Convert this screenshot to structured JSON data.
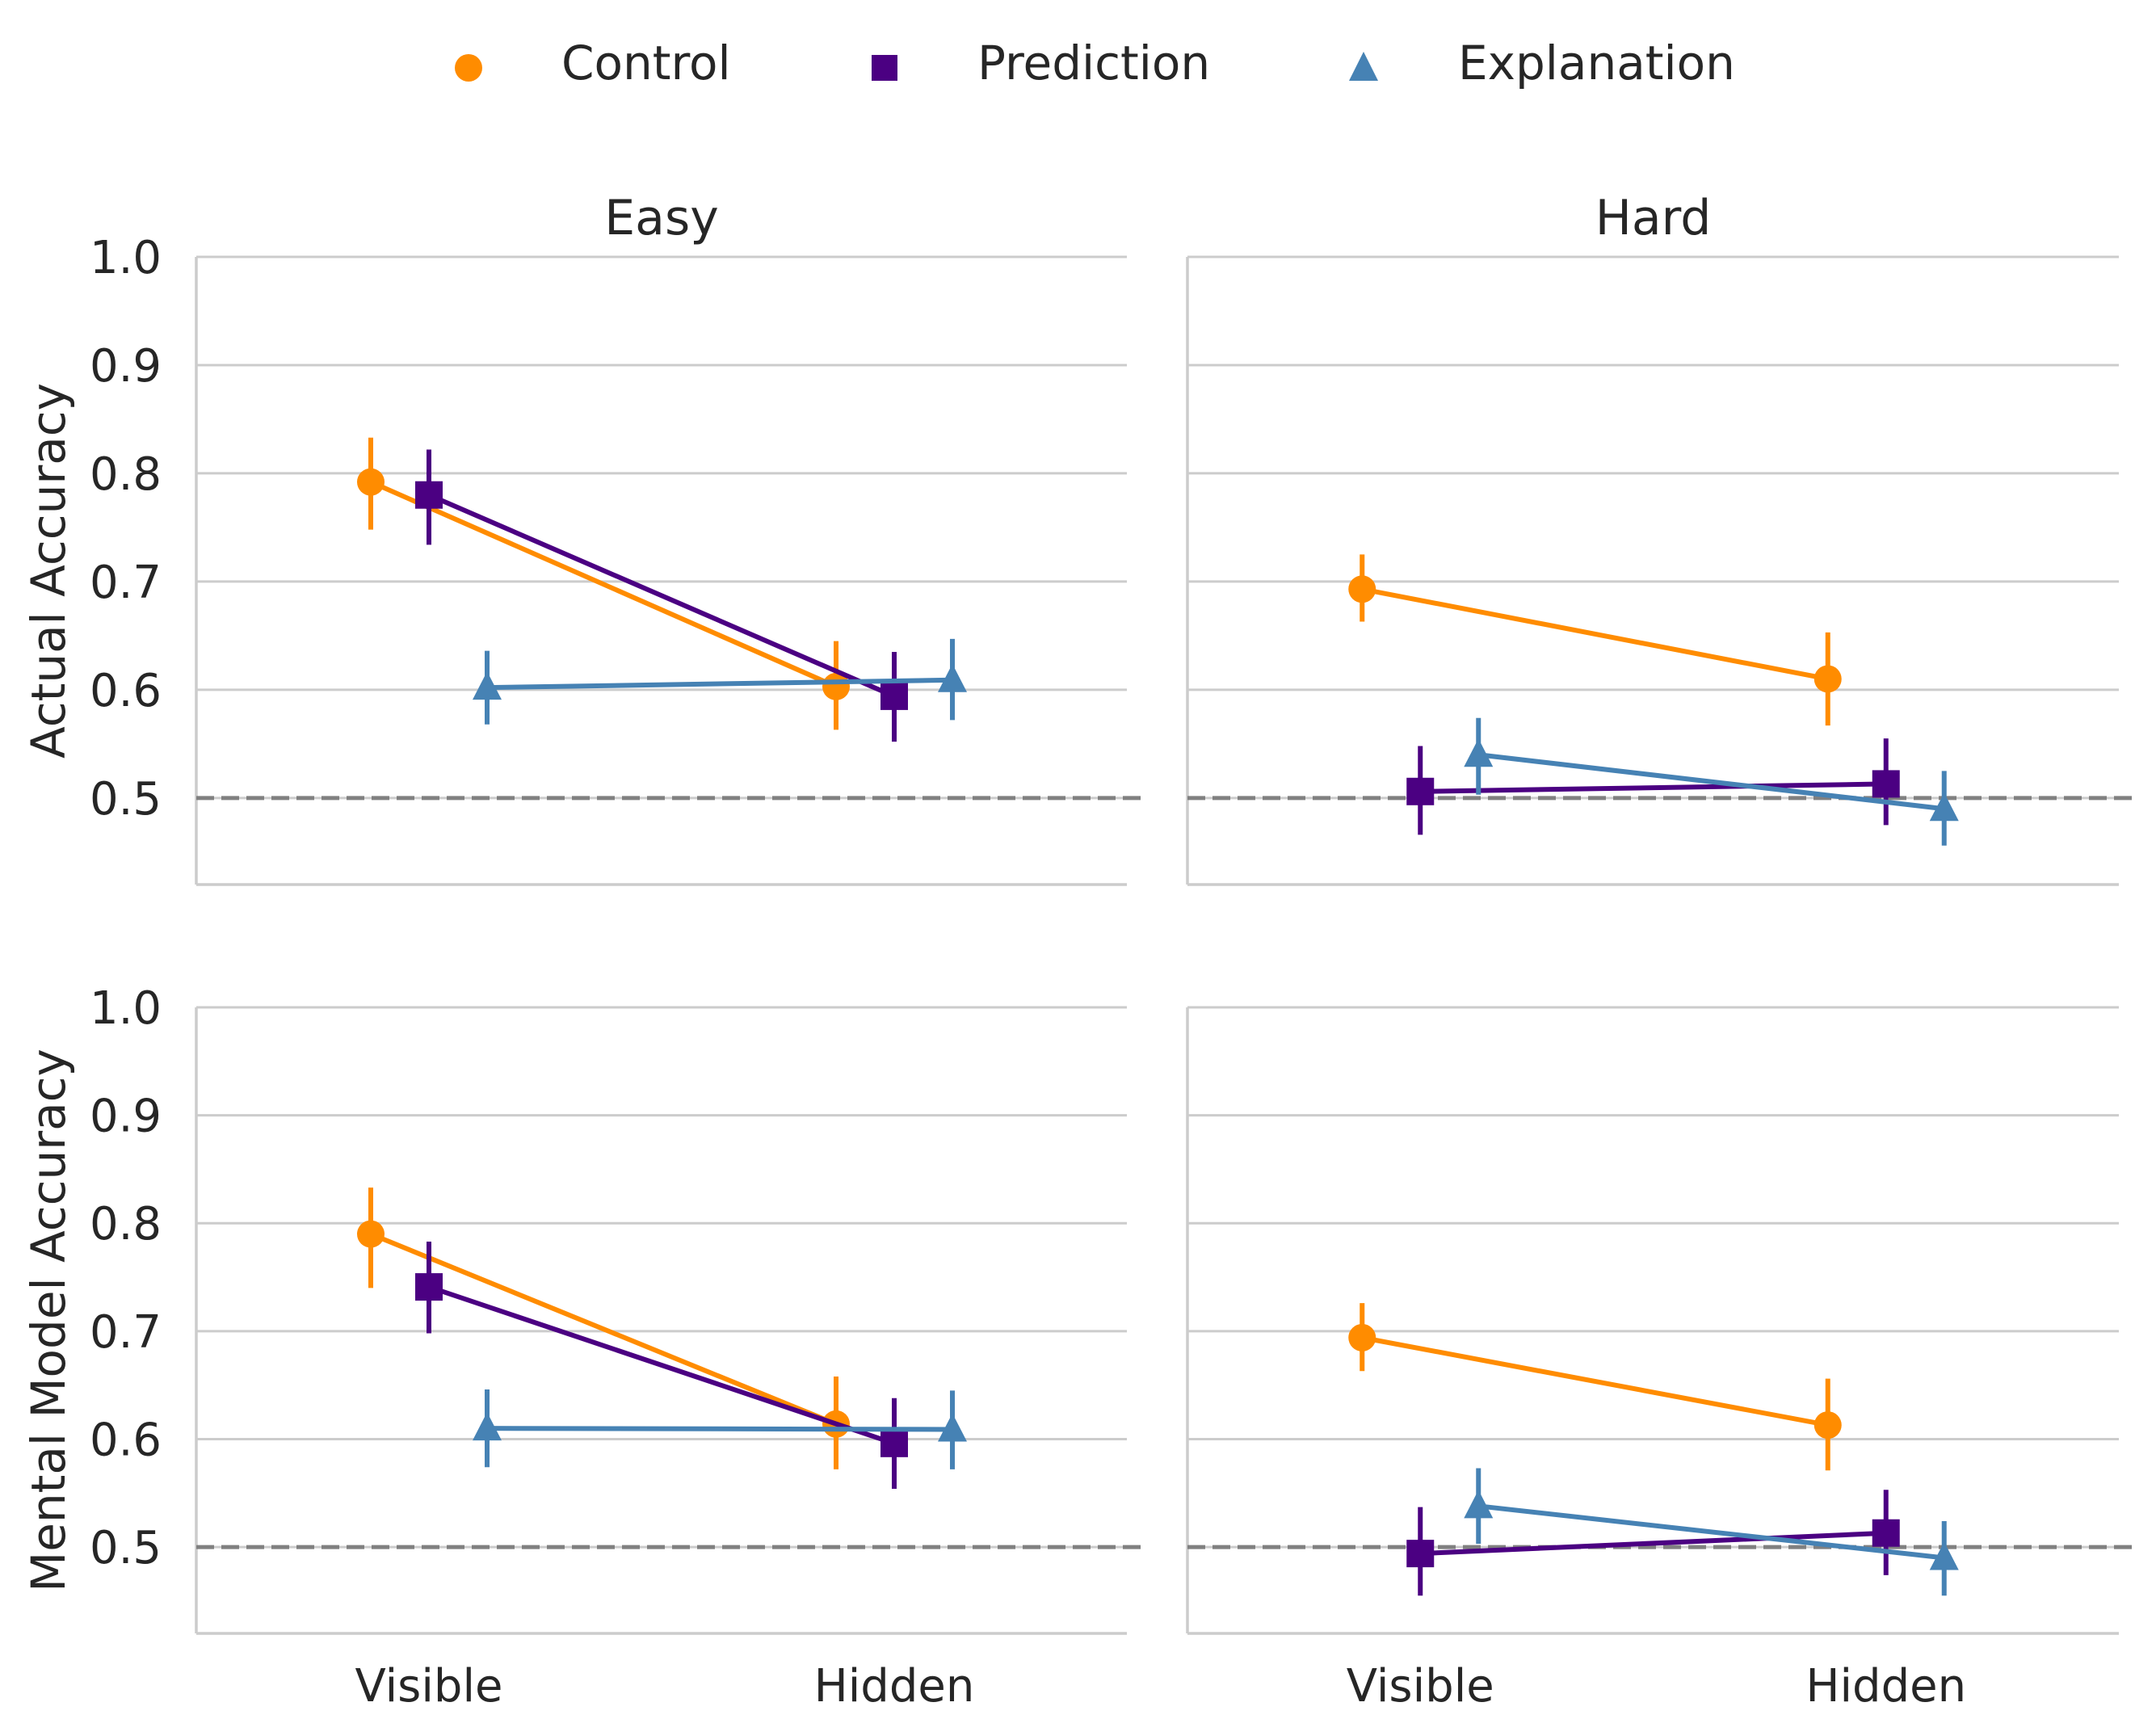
{
  "legend": {
    "placement": "top-center",
    "items": [
      {
        "label": "Control",
        "marker": "circle",
        "color": "#FF8C00"
      },
      {
        "label": "Prediction",
        "marker": "square",
        "color": "#4B0082"
      },
      {
        "label": "Explanation",
        "marker": "triangle",
        "color": "#4682B4"
      }
    ]
  },
  "chart_data": [
    {
      "type": "line",
      "title": "Easy",
      "ylabel": "Actual Accuracy",
      "xlabel": "",
      "categories": [
        "Visible",
        "Hidden"
      ],
      "ylim": [
        0.42,
        1.0
      ],
      "yticks": [
        "0.5",
        "0.6",
        "0.7",
        "0.8",
        "0.9",
        "1.0"
      ],
      "grid": true,
      "reference_line": 0.5,
      "series": [
        {
          "name": "Control",
          "values": [
            0.792,
            0.603
          ],
          "ci_low": [
            0.748,
            0.563
          ],
          "ci_high": [
            0.833,
            0.645
          ]
        },
        {
          "name": "Prediction",
          "values": [
            0.78,
            0.594
          ],
          "ci_low": [
            0.734,
            0.552
          ],
          "ci_high": [
            0.822,
            0.635
          ]
        },
        {
          "name": "Explanation",
          "values": [
            0.602,
            0.609
          ],
          "ci_low": [
            0.568,
            0.572
          ],
          "ci_high": [
            0.636,
            0.647
          ]
        }
      ]
    },
    {
      "type": "line",
      "title": "Hard",
      "ylabel": "",
      "xlabel": "",
      "categories": [
        "Visible",
        "Hidden"
      ],
      "ylim": [
        0.42,
        1.0
      ],
      "grid": true,
      "reference_line": 0.5,
      "series": [
        {
          "name": "Control",
          "values": [
            0.693,
            0.61
          ],
          "ci_low": [
            0.663,
            0.567
          ],
          "ci_high": [
            0.725,
            0.653
          ]
        },
        {
          "name": "Prediction",
          "values": [
            0.506,
            0.513
          ],
          "ci_low": [
            0.466,
            0.475
          ],
          "ci_high": [
            0.548,
            0.555
          ]
        },
        {
          "name": "Explanation",
          "values": [
            0.54,
            0.49
          ],
          "ci_low": [
            0.503,
            0.456
          ],
          "ci_high": [
            0.574,
            0.525
          ]
        }
      ]
    },
    {
      "type": "line",
      "title": "",
      "ylabel": "Mental Model Accuracy",
      "xlabel": "",
      "categories": [
        "Visible",
        "Hidden"
      ],
      "ylim": [
        0.42,
        1.0
      ],
      "yticks": [
        "0.5",
        "0.6",
        "0.7",
        "0.8",
        "0.9",
        "1.0"
      ],
      "grid": true,
      "reference_line": 0.5,
      "series": [
        {
          "name": "Control",
          "values": [
            0.79,
            0.614
          ],
          "ci_low": [
            0.74,
            0.572
          ],
          "ci_high": [
            0.833,
            0.658
          ]
        },
        {
          "name": "Prediction",
          "values": [
            0.741,
            0.596
          ],
          "ci_low": [
            0.698,
            0.554
          ],
          "ci_high": [
            0.783,
            0.638
          ]
        },
        {
          "name": "Explanation",
          "values": [
            0.61,
            0.609
          ],
          "ci_low": [
            0.574,
            0.572
          ],
          "ci_high": [
            0.646,
            0.645
          ]
        }
      ]
    },
    {
      "type": "line",
      "title": "",
      "ylabel": "",
      "xlabel": "",
      "categories": [
        "Visible",
        "Hidden"
      ],
      "ylim": [
        0.42,
        1.0
      ],
      "grid": true,
      "reference_line": 0.5,
      "series": [
        {
          "name": "Control",
          "values": [
            0.694,
            0.613
          ],
          "ci_low": [
            0.663,
            0.571
          ],
          "ci_high": [
            0.726,
            0.656
          ]
        },
        {
          "name": "Prediction",
          "values": [
            0.494,
            0.513
          ],
          "ci_low": [
            0.455,
            0.474
          ],
          "ci_high": [
            0.537,
            0.553
          ]
        },
        {
          "name": "Explanation",
          "values": [
            0.538,
            0.49
          ],
          "ci_low": [
            0.503,
            0.455
          ],
          "ci_high": [
            0.573,
            0.524
          ]
        }
      ]
    }
  ]
}
